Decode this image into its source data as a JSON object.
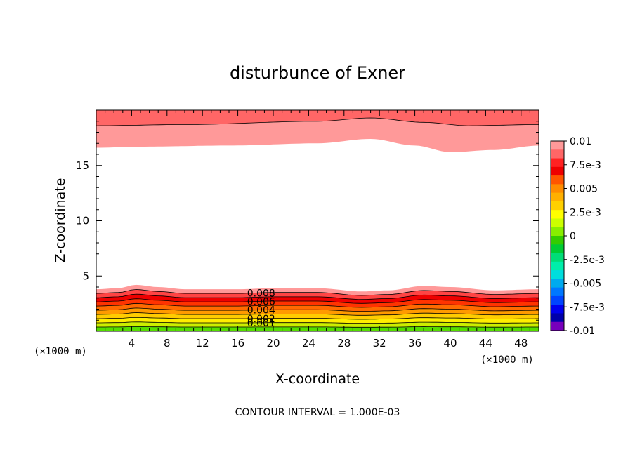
{
  "chart_data": {
    "type": "contour",
    "title": "disturbunce of Exner",
    "xlabel": "X-coordinate",
    "ylabel": "Z-coordinate",
    "x_unit_label": "(×1000 m)",
    "y_unit_label": "(×1000 m)",
    "footer": "CONTOUR INTERVAL = 1.000E-03",
    "xlim": [
      0,
      50
    ],
    "ylim": [
      0,
      20
    ],
    "x_ticks": [
      4,
      8,
      12,
      16,
      20,
      24,
      28,
      32,
      36,
      40,
      44,
      48
    ],
    "y_ticks": [
      5,
      10,
      15
    ],
    "contour_interval": 0.001,
    "colorbar": {
      "min": -0.01,
      "max": 0.01,
      "labels": [
        "0.01",
        "7.5e-3",
        "0.005",
        "2.5e-3",
        "0",
        "-2.5e-3",
        "-0.005",
        "-7.5e-3",
        "-0.01"
      ],
      "colors": [
        "#ff9999",
        "#ff6666",
        "#ff2222",
        "#ee0000",
        "#ff5500",
        "#ff8c00",
        "#ffb000",
        "#ffd000",
        "#ffff00",
        "#ccff00",
        "#88ee00",
        "#33cc00",
        "#00cc33",
        "#00dd77",
        "#00eeaa",
        "#00dddd",
        "#00aaee",
        "#0077ff",
        "#0044ff",
        "#0000ee",
        "#0000aa",
        "#7700bb"
      ]
    },
    "contour_labels": [
      "0.008",
      "0.006",
      "0.004",
      "0.002",
      "0.001"
    ],
    "top_region": {
      "levels": [
        0.009,
        0.01
      ],
      "lower_edge_km": [
        [
          0,
          16.6
        ],
        [
          5,
          16.7
        ],
        [
          15,
          16.8
        ],
        [
          25,
          17.0
        ],
        [
          31,
          17.4
        ],
        [
          36,
          16.8
        ],
        [
          40,
          16.2
        ],
        [
          45,
          16.4
        ],
        [
          50,
          16.8
        ]
      ],
      "inner_contour_km": [
        [
          0,
          18.6
        ],
        [
          10,
          18.7
        ],
        [
          25,
          19.0
        ],
        [
          31,
          19.3
        ],
        [
          37,
          18.9
        ],
        [
          42,
          18.6
        ],
        [
          50,
          18.7
        ]
      ]
    },
    "bottom_region": {
      "base_contour_km": [
        [
          0,
          3.8
        ],
        [
          2.5,
          3.9
        ],
        [
          4.5,
          4.2
        ],
        [
          7,
          4.0
        ],
        [
          10,
          3.8
        ],
        [
          16,
          3.8
        ],
        [
          20,
          3.9
        ],
        [
          25,
          3.9
        ],
        [
          30,
          3.6
        ],
        [
          33,
          3.7
        ],
        [
          37,
          4.1
        ],
        [
          40,
          4.0
        ],
        [
          45,
          3.7
        ],
        [
          50,
          3.8
        ]
      ],
      "levels_from_top": [
        0.009,
        0.008,
        0.007,
        0.006,
        0.005,
        0.004,
        0.003,
        0.002,
        0.001,
        0.0
      ],
      "level_colors": [
        "#ff9999",
        "#ff4444",
        "#ee0000",
        "#ff3300",
        "#ff6a00",
        "#ff9a00",
        "#ffcc00",
        "#ffee00",
        "#ccee00",
        "#55dd00"
      ]
    }
  }
}
